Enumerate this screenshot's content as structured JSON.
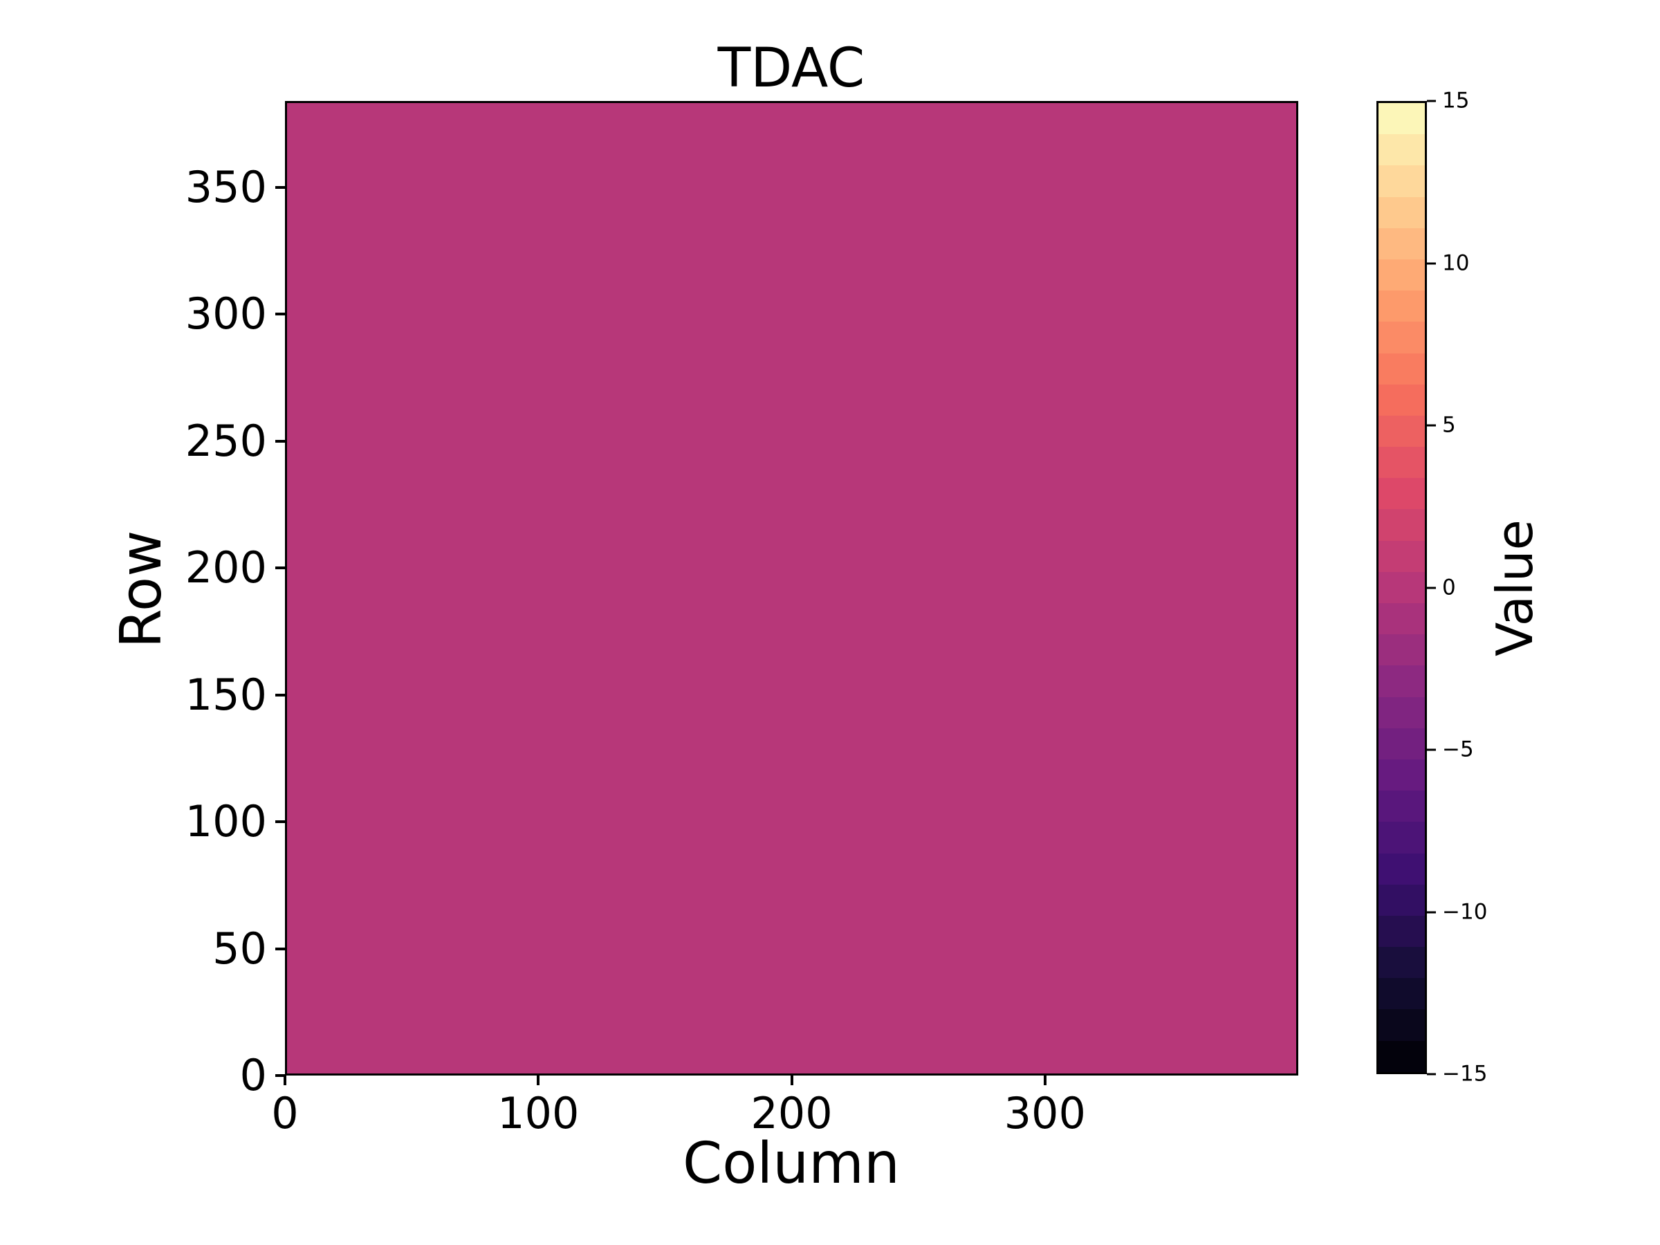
{
  "figure": {
    "title": "TDAC",
    "xlabel": "Column",
    "ylabel": "Row",
    "colorbar_label": "Value"
  },
  "axes": {
    "x_tick_labels": [
      "0",
      "100",
      "200",
      "300"
    ],
    "y_tick_labels": [
      "0",
      "50",
      "100",
      "150",
      "200",
      "250",
      "300",
      "350"
    ]
  },
  "colorbar": {
    "label": "Value",
    "vmin": -15,
    "vmax": 15,
    "levels": 31,
    "colormap": "magma",
    "anchors": [
      "#000004",
      "#140e36",
      "#3b0f70",
      "#641a80",
      "#8c2981",
      "#b73779",
      "#de4968",
      "#f7705c",
      "#fe9f6d",
      "#fecf92",
      "#fcfdbf"
    ],
    "ticks": [
      {
        "value": 15,
        "label": "15"
      },
      {
        "value": 10,
        "label": "10"
      },
      {
        "value": 5,
        "label": "5"
      },
      {
        "value": 0,
        "label": "0"
      },
      {
        "value": -5,
        "label": "−5"
      },
      {
        "value": -10,
        "label": "−10"
      },
      {
        "value": -15,
        "label": "−15"
      }
    ]
  },
  "chart_data": {
    "type": "heatmap",
    "title": "TDAC",
    "xlabel": "Column",
    "ylabel": "Row",
    "colorbar_label": "Value",
    "x_range": [
      0,
      400
    ],
    "y_range": [
      0,
      384
    ],
    "x_ticks": [
      0,
      100,
      200,
      300
    ],
    "y_ticks": [
      0,
      50,
      100,
      150,
      200,
      250,
      300,
      350
    ],
    "value_range": [
      -15,
      15
    ],
    "colorbar_ticks": [
      15,
      10,
      5,
      0,
      -5,
      -10,
      -15
    ],
    "colormap": "magma, discretized into 31 levels",
    "uniform_value": 0,
    "fill_color": "#b73779",
    "data_description": "Every cell of the 400-column x 384-row map has the same value (0), rendered as a single uniform magenta field",
    "grid": false,
    "legend": false
  }
}
